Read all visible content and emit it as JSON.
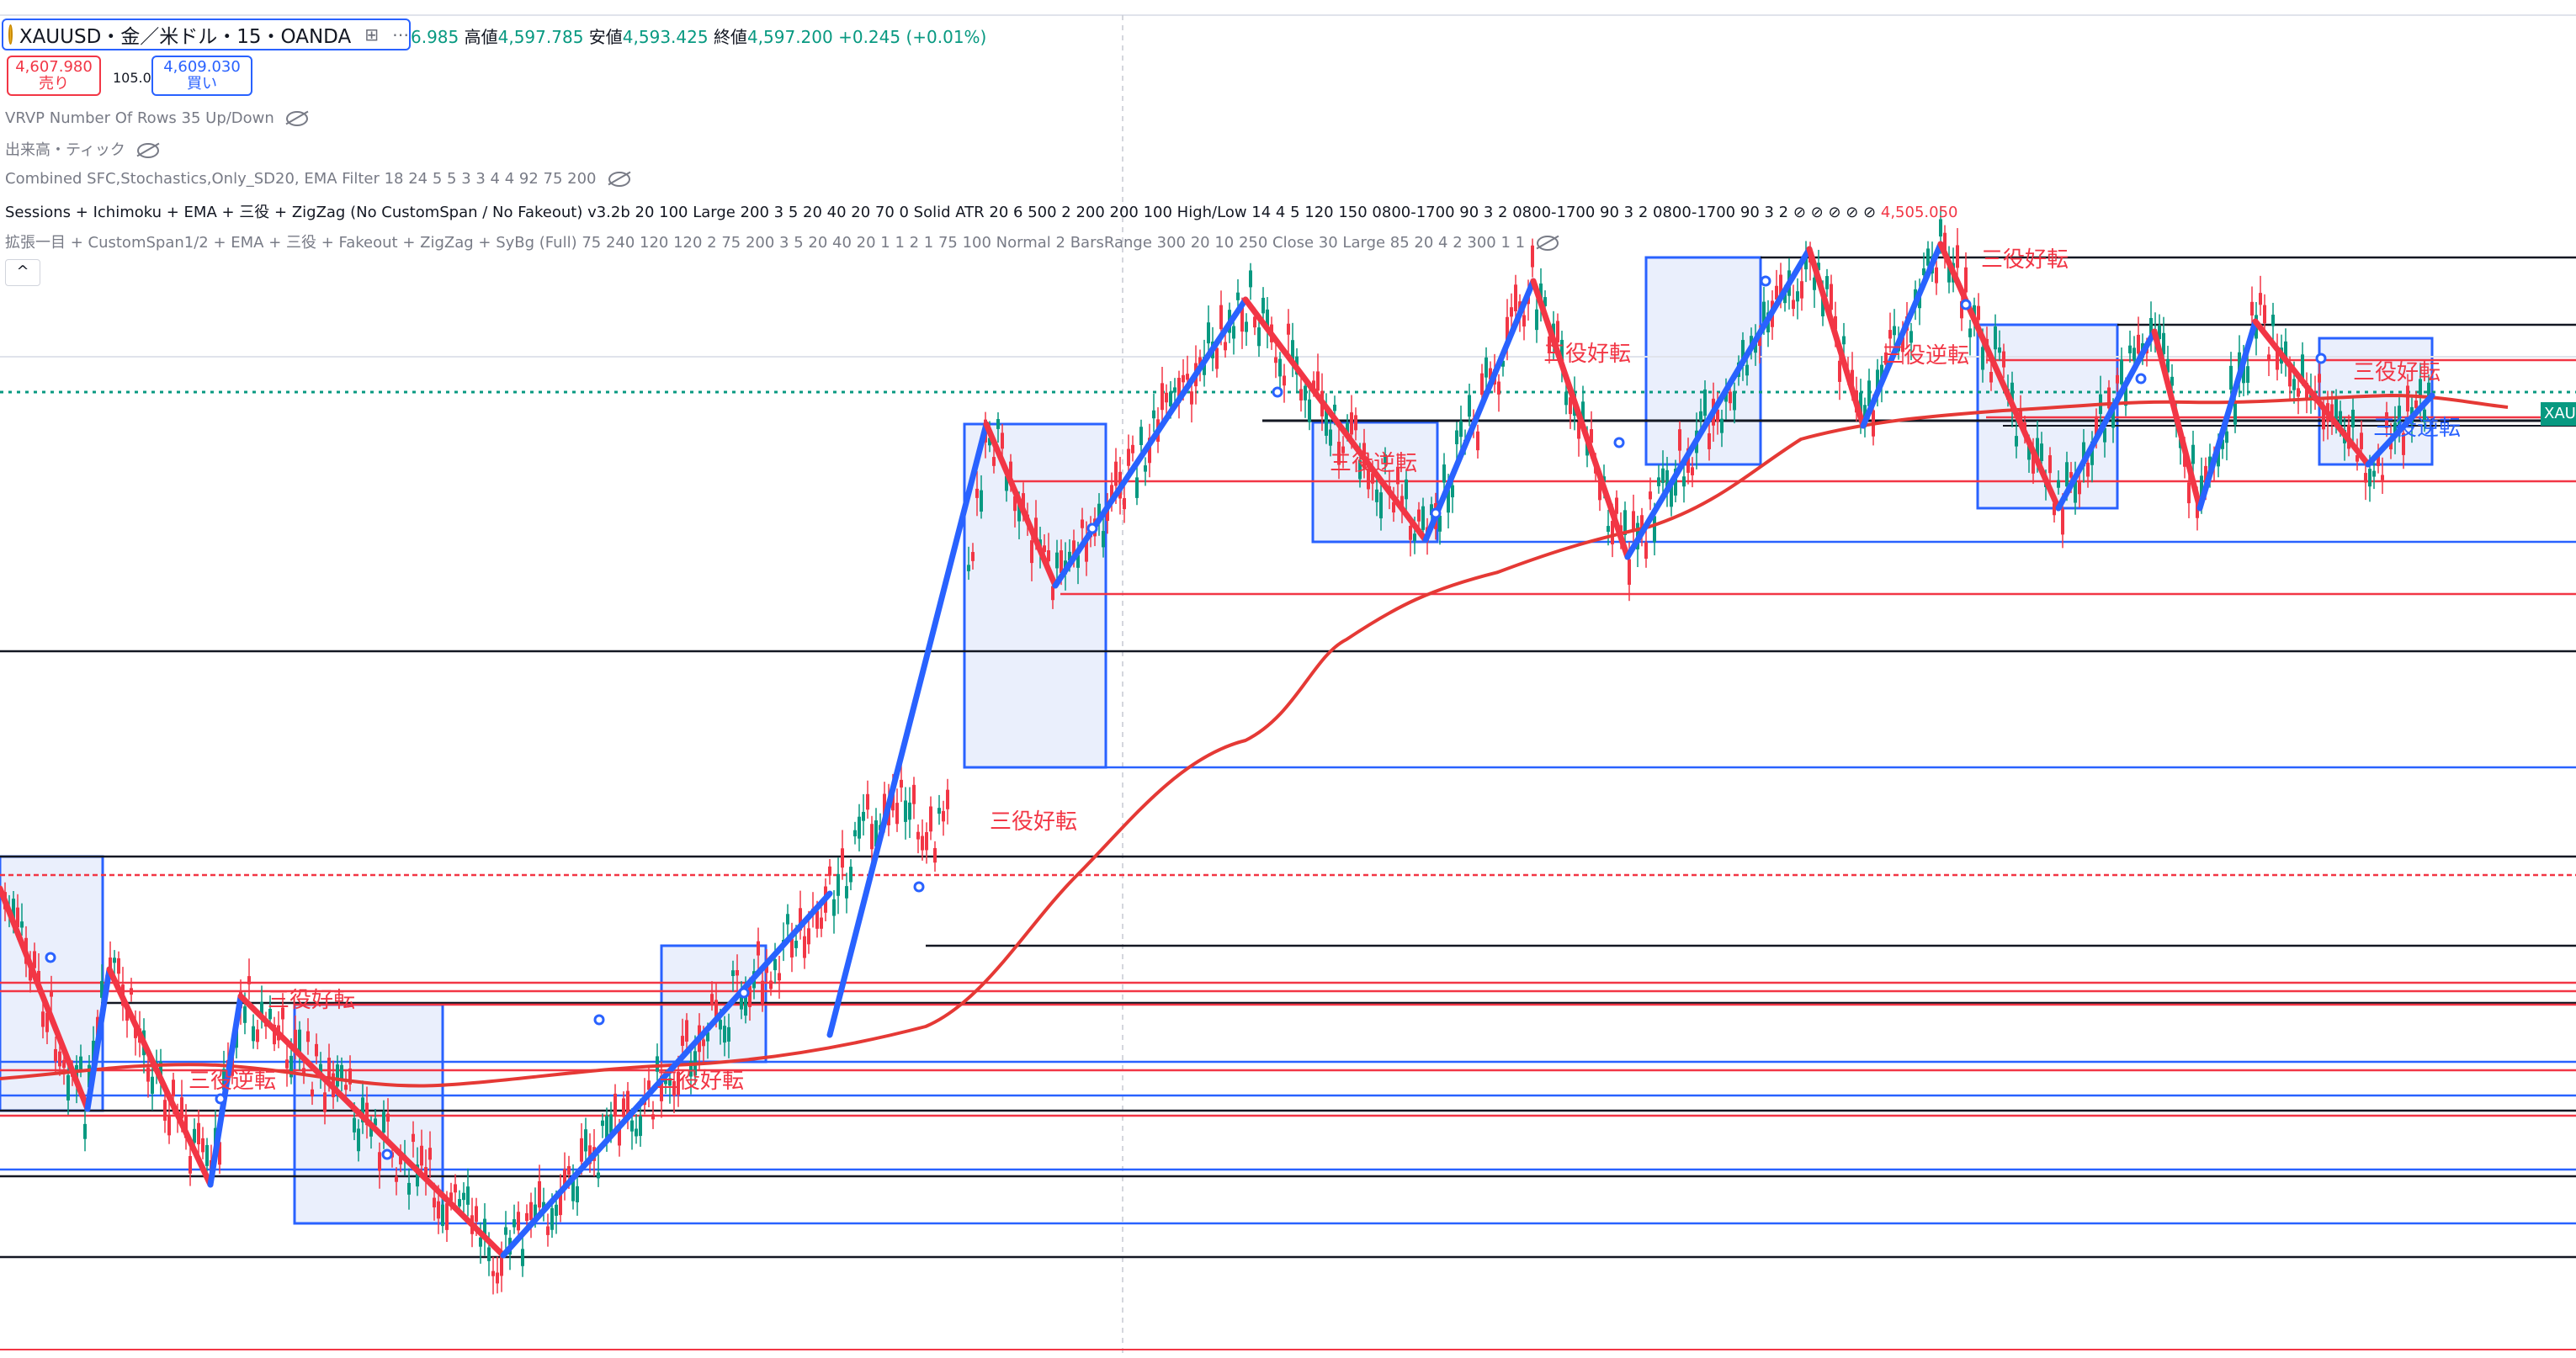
{
  "header": {
    "symbol_title": "XAUUSD・金／米ドル・15・OANDA",
    "ohlc_partial": "6.985",
    "high_label": "高値",
    "high_value": "4,597.785",
    "low_label": "安値",
    "low_value": "4,593.425",
    "close_label": "終値",
    "close_value": "4,597.200",
    "change": "+0.245 (+0.01%)"
  },
  "trade": {
    "sell_price": "4,607.980",
    "sell_label": "売り",
    "spread": "105.0",
    "buy_price": "4,609.030",
    "buy_label": "買い"
  },
  "indicators": [
    "VRVP Number Of Rows 35 Up/Down",
    "出来高・ティック",
    "Combined SFC,Stochastics,Only_SD20, EMA Filter 18 24 5 5 3 3 4 4 92 75 200",
    "Sessions + Ichimoku + EMA + 三役 + ZigZag (No CustomSpan / No Fakeout) v3.2b 20 100 Large 200 3 5 20 40 20 70 0 Solid ATR 20 6 500 2 200 200 100 High/Low 14 4 5 120 150 0800-1700 90 3 2 0800-1700 90 3 2 0800-1700 90 3 2 ⊘ ⊘ ⊘ ⊘ ⊘",
    "拡張一目 + CustomSpan1/2 + EMA + 三役 + Fakeout + ZigZag + SyBg (Full) 75 240 120 120 2 75 200 3 5 20 40 20 1 1 2 1 75 100 Normal 2 BarsRange 300 20 10 250 Close 30 Large 85 20 4 2 300 1 1"
  ],
  "indicator_value_red": "4,505.050",
  "price_tag_label": "XAU",
  "signals": {
    "good": "三役好転",
    "reverse": "三役逆転"
  },
  "icons": {
    "collapse": "chevron-up-icon",
    "visibility": "eye-off-icon",
    "symbol": "gold-coin-icon"
  },
  "colors": {
    "bull": "#089981",
    "bear": "#f23645",
    "zigzag_up": "#2962ff",
    "zigzag_down": "#f23645",
    "ema": "#e53935",
    "box_fill": "#e3e9fb"
  }
}
